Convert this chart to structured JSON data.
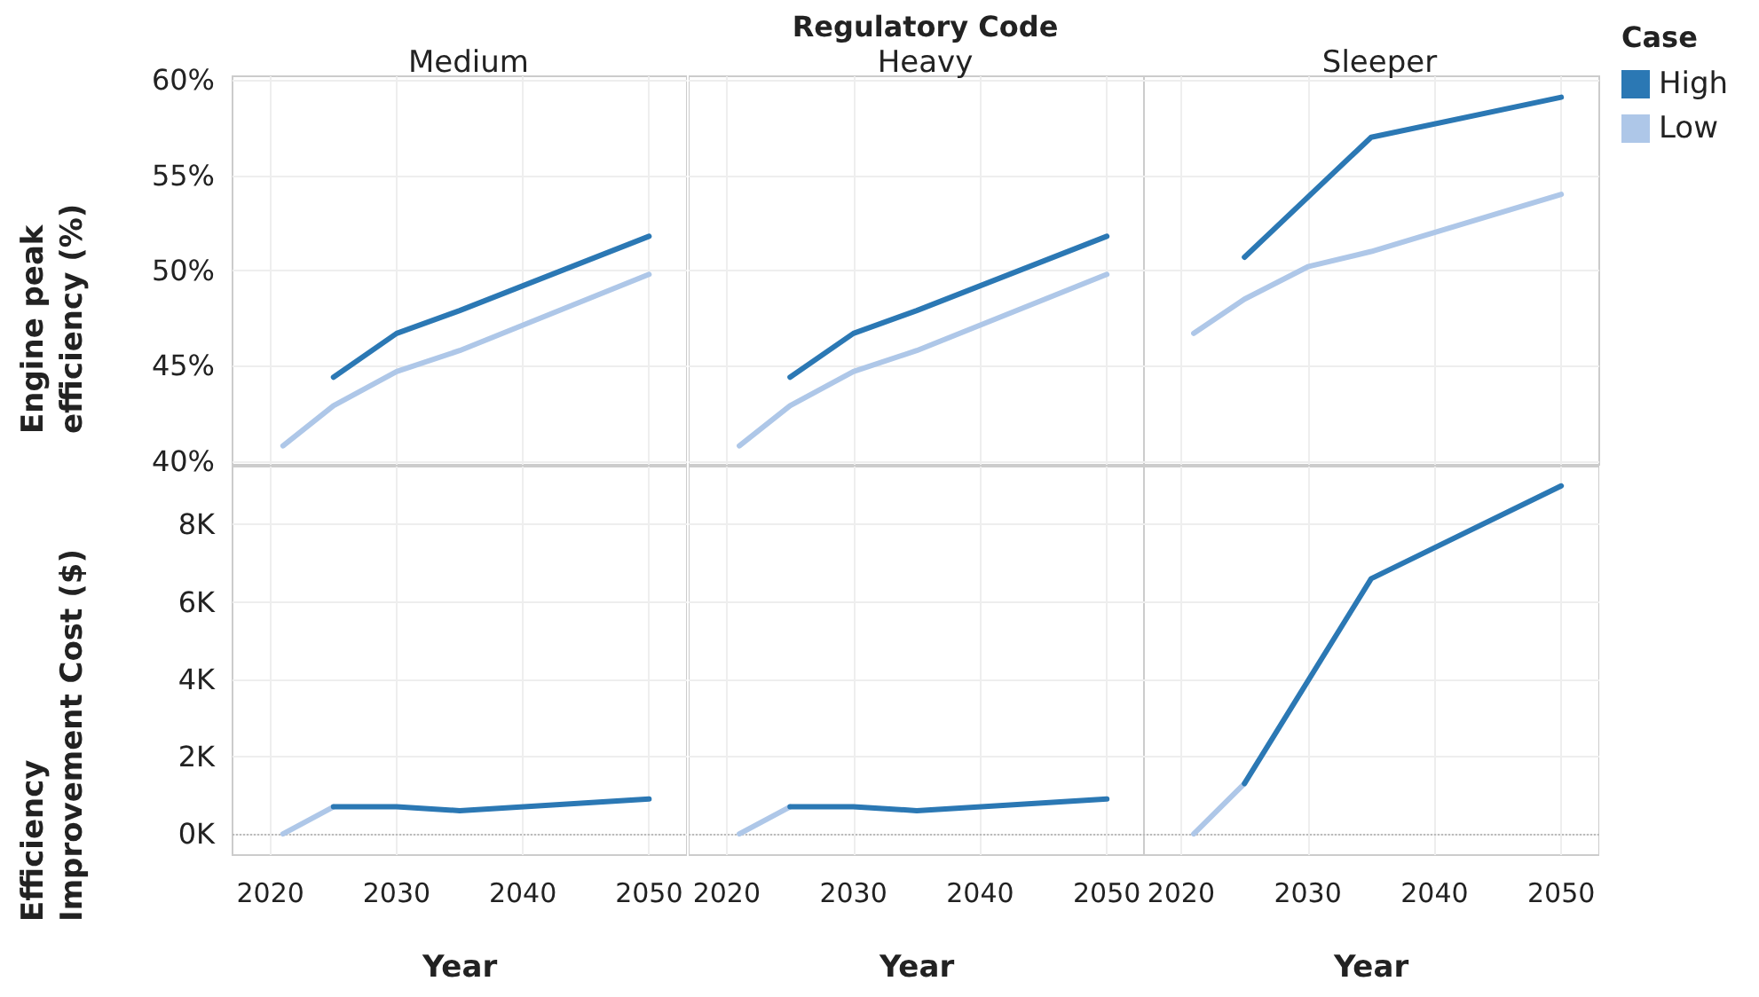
{
  "chart_data": [
    {
      "type": "line",
      "subtitle": "Medium",
      "ylabel": "Engine peak efficiency (%)",
      "xlim": [
        2017,
        2053
      ],
      "xticks": [
        2020,
        2030,
        2040,
        2050
      ],
      "ylim": [
        39.8,
        60.2
      ],
      "yticks": [
        {
          "value": 40,
          "label": "40%"
        },
        {
          "value": 45,
          "label": "45%"
        },
        {
          "value": 50,
          "label": "50%"
        },
        {
          "value": 55,
          "label": "55%"
        },
        {
          "value": 60,
          "label": "60%"
        }
      ],
      "grid": true,
      "tick_labels": "y",
      "series": [
        {
          "color": "#2b78b4",
          "x": [
            2025,
            2030,
            2035,
            2050
          ],
          "values": [
            44.4,
            46.7,
            47.9,
            51.8
          ]
        },
        {
          "color": "#aec7e8",
          "x": [
            2021,
            2025,
            2030,
            2035,
            2050
          ],
          "values": [
            40.8,
            42.9,
            44.7,
            45.8,
            49.8
          ]
        }
      ]
    },
    {
      "type": "line",
      "title": "Regulatory Code",
      "subtitle": "Heavy",
      "xlim": [
        2017,
        2053
      ],
      "xticks": [
        2020,
        2030,
        2040,
        2050
      ],
      "ylim": [
        39.8,
        60.2
      ],
      "yticks": [
        40,
        45,
        50,
        55,
        60
      ],
      "grid": true,
      "tick_labels": false,
      "series": [
        {
          "color": "#2b78b4",
          "x": [
            2025,
            2030,
            2035,
            2050
          ],
          "values": [
            44.4,
            46.7,
            47.9,
            51.8
          ]
        },
        {
          "color": "#aec7e8",
          "x": [
            2021,
            2025,
            2030,
            2035,
            2050
          ],
          "values": [
            40.8,
            42.9,
            44.7,
            45.8,
            49.8
          ]
        }
      ]
    },
    {
      "type": "line",
      "subtitle": "Sleeper",
      "legend": "top right",
      "legend_title": "Case",
      "xlim": [
        2017,
        2053
      ],
      "xticks": [
        2020,
        2030,
        2040,
        2050
      ],
      "ylim": [
        39.8,
        60.2
      ],
      "yticks": [
        40,
        45,
        50,
        55,
        60
      ],
      "grid": true,
      "tick_labels": false,
      "series": [
        {
          "name": "High",
          "color": "#2b78b4",
          "x": [
            2025,
            2035,
            2050
          ],
          "values": [
            50.7,
            57,
            59.1
          ]
        },
        {
          "name": "Low",
          "color": "#aec7e8",
          "x": [
            2021,
            2025,
            2030,
            2035,
            2050
          ],
          "values": [
            46.7,
            48.5,
            50.2,
            51,
            54
          ]
        }
      ]
    },
    {
      "type": "line",
      "xlabel": "Year",
      "ylabel": "Efficiency Improvement Cost ($)",
      "xlim": [
        2017,
        2053
      ],
      "xticks": [
        2020,
        2030,
        2040,
        2050
      ],
      "ylim": [
        -550,
        9500
      ],
      "yticks": [
        {
          "value": 0,
          "label": "0K"
        },
        {
          "value": 2000,
          "label": "2K"
        },
        {
          "value": 4000,
          "label": "4K"
        },
        {
          "value": 6000,
          "label": "6K"
        },
        {
          "value": 8000,
          "label": "8K"
        }
      ],
      "grid": true,
      "ref_lines": [
        {
          "axis": "y",
          "value": 0,
          "color": "#bbbbbb",
          "line_style": "dotted"
        }
      ],
      "series": [
        {
          "color": "#2b78b4",
          "x": [
            2025,
            2030,
            2035,
            2050
          ],
          "values": [
            700,
            700,
            600,
            900
          ]
        },
        {
          "color": "#aec7e8",
          "x": [
            2021,
            2025
          ],
          "values": [
            0,
            700
          ]
        }
      ]
    },
    {
      "type": "line",
      "xlabel": "Year",
      "xlim": [
        2017,
        2053
      ],
      "xticks": [
        2020,
        2030,
        2040,
        2050
      ],
      "ylim": [
        -550,
        9500
      ],
      "yticks": [
        0,
        2000,
        4000,
        6000,
        8000
      ],
      "grid": true,
      "tick_labels": "x",
      "ref_lines": [
        {
          "axis": "y",
          "value": 0,
          "color": "#bbbbbb",
          "line_style": "dotted"
        }
      ],
      "series": [
        {
          "color": "#2b78b4",
          "x": [
            2025,
            2030,
            2035,
            2050
          ],
          "values": [
            700,
            700,
            600,
            900
          ]
        },
        {
          "color": "#aec7e8",
          "x": [
            2021,
            2025
          ],
          "values": [
            0,
            700
          ]
        }
      ]
    },
    {
      "type": "line",
      "xlabel": "Year",
      "xlim": [
        2017,
        2053
      ],
      "xticks": [
        2020,
        2030,
        2040,
        2050
      ],
      "ylim": [
        -550,
        9500
      ],
      "yticks": [
        0,
        2000,
        4000,
        6000,
        8000
      ],
      "grid": true,
      "tick_labels": "x",
      "ref_lines": [
        {
          "axis": "y",
          "value": 0,
          "color": "#bbbbbb",
          "line_style": "dotted"
        }
      ],
      "series": [
        {
          "color": "#2b78b4",
          "x": [
            2025,
            2035,
            2050
          ],
          "values": [
            1300,
            6600,
            9000
          ]
        },
        {
          "color": "#aec7e8",
          "x": [
            2021,
            2025
          ],
          "values": [
            0,
            1300
          ]
        }
      ]
    }
  ]
}
